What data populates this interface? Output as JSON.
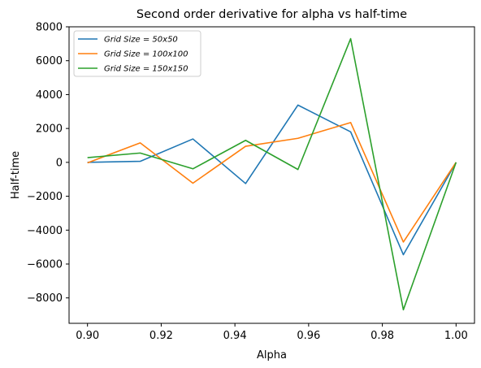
{
  "chart_data": {
    "type": "line",
    "title": "Second order derivative for alpha vs half-time",
    "xlabel": "Alpha",
    "ylabel": "Half-time",
    "xlim": [
      0.895,
      1.005
    ],
    "ylim": [
      -9500,
      8000
    ],
    "x_ticks": [
      0.9,
      0.92,
      0.94,
      0.96,
      0.98,
      1.0
    ],
    "x_tick_labels": [
      "0.90",
      "0.92",
      "0.94",
      "0.96",
      "0.98",
      "1.00"
    ],
    "y_ticks": [
      -8000,
      -6000,
      -4000,
      -2000,
      0,
      2000,
      4000,
      6000,
      8000
    ],
    "y_tick_labels": [
      "−8000",
      "−6000",
      "−4000",
      "−2000",
      "0",
      "2000",
      "4000",
      "6000",
      "8000"
    ],
    "grid": false,
    "legend_position": "top-left",
    "x": [
      0.9,
      0.9143,
      0.9286,
      0.9429,
      0.9571,
      0.9714,
      0.9857,
      1.0
    ],
    "series": [
      {
        "name": "Grid Size = 50x50",
        "color": "#1f77b4",
        "values": [
          0,
          60,
          1380,
          -1250,
          3380,
          1800,
          -5450,
          0
        ]
      },
      {
        "name": "Grid Size = 100x100",
        "color": "#ff7f0e",
        "values": [
          -30,
          1150,
          -1230,
          950,
          1420,
          2350,
          -4700,
          0
        ]
      },
      {
        "name": "Grid Size = 150x150",
        "color": "#2ca02c",
        "values": [
          280,
          550,
          -380,
          1300,
          -420,
          7300,
          -8700,
          0
        ]
      }
    ]
  }
}
